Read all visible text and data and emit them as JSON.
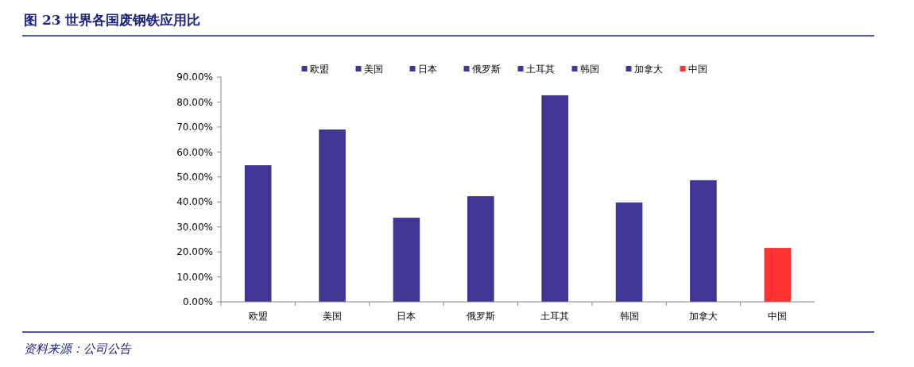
{
  "chart_data": {
    "type": "bar",
    "title": "图 23 世界各国废钢铁应用比",
    "categories": [
      "欧盟",
      "美国",
      "日本",
      "俄罗斯",
      "土耳其",
      "韩国",
      "加拿大",
      "中国"
    ],
    "series": [
      {
        "name": "欧盟",
        "color": "#403696",
        "values": [
          54.7,
          null,
          null,
          null,
          null,
          null,
          null,
          null
        ]
      },
      {
        "name": "美国",
        "color": "#403696",
        "values": [
          null,
          69.0,
          null,
          null,
          null,
          null,
          null,
          null
        ]
      },
      {
        "name": "日本",
        "color": "#403696",
        "values": [
          null,
          null,
          33.7,
          null,
          null,
          null,
          null,
          null
        ]
      },
      {
        "name": "俄罗斯",
        "color": "#403696",
        "values": [
          null,
          null,
          null,
          42.3,
          null,
          null,
          null,
          null
        ]
      },
      {
        "name": "土耳其",
        "color": "#403696",
        "values": [
          null,
          null,
          null,
          null,
          82.7,
          null,
          null,
          null
        ]
      },
      {
        "name": "韩国",
        "color": "#403696",
        "values": [
          null,
          null,
          null,
          null,
          null,
          39.8,
          null,
          null
        ]
      },
      {
        "name": "加拿大",
        "color": "#403696",
        "values": [
          null,
          null,
          null,
          null,
          null,
          null,
          48.7,
          null
        ]
      },
      {
        "name": "中国",
        "color": "#ff3333",
        "values": [
          null,
          null,
          null,
          null,
          null,
          null,
          null,
          21.6
        ]
      }
    ],
    "ylim": [
      0,
      90
    ],
    "yticks": [
      {
        "value": 0,
        "label": "0.00%"
      },
      {
        "value": 10,
        "label": "10.00%"
      },
      {
        "value": 20,
        "label": "20.00%"
      },
      {
        "value": 30,
        "label": "30.00%"
      },
      {
        "value": 40,
        "label": "40.00%"
      },
      {
        "value": 50,
        "label": "50.00%"
      },
      {
        "value": 60,
        "label": "60.00%"
      },
      {
        "value": 70,
        "label": "70.00%"
      },
      {
        "value": 80,
        "label": "80.00%"
      },
      {
        "value": 90,
        "label": "90.00%"
      }
    ],
    "legend": "top",
    "annotations": [
      "资料来源：公司公告"
    ]
  }
}
